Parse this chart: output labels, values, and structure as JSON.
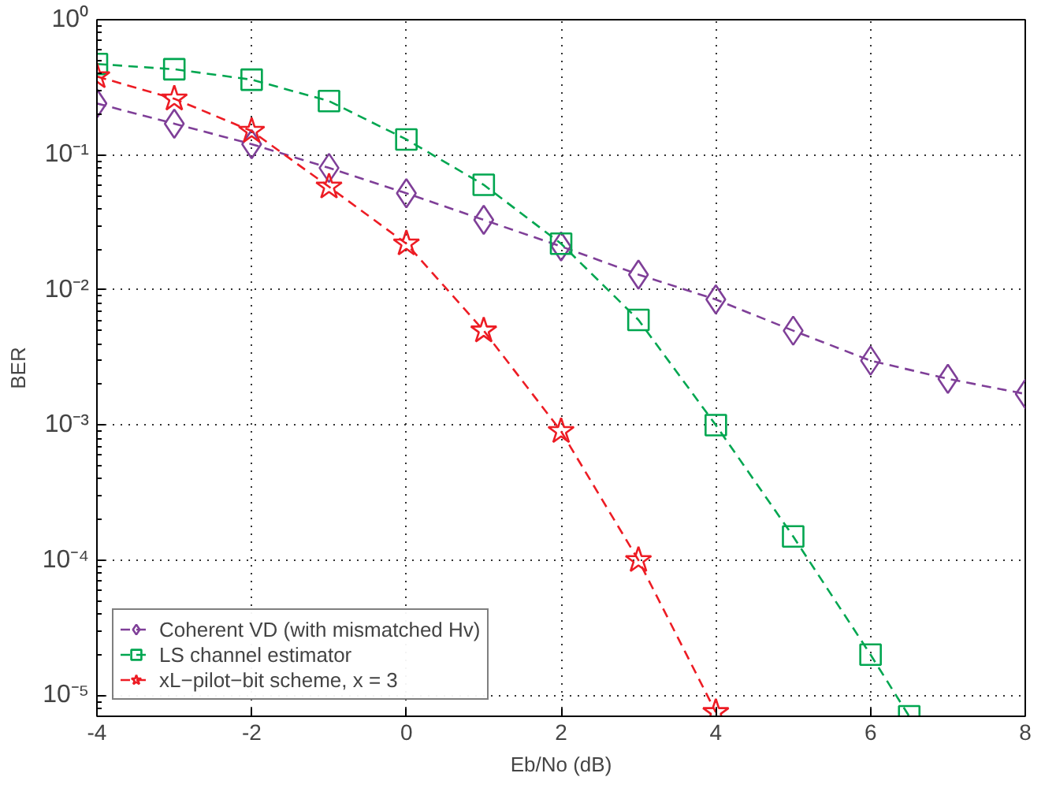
{
  "chart_data": {
    "type": "line",
    "xlabel": "Eb/No (dB)",
    "ylabel": "BER",
    "log": "y",
    "grid": true,
    "legend": "bottom left",
    "line_style": "dashed",
    "xlim": [
      -4,
      8
    ],
    "xticks": [
      -4,
      -2,
      0,
      2,
      4,
      6,
      8
    ],
    "ylim": [
      7e-06,
      1
    ],
    "yticks": [
      {
        "value": 1,
        "label": "10⁰"
      },
      {
        "value": 0.1,
        "label": "10⁻¹"
      },
      {
        "value": 0.01,
        "label": "10⁻²"
      },
      {
        "value": 0.001,
        "label": "10⁻³"
      },
      {
        "value": 0.0001,
        "label": "10⁻⁴"
      },
      {
        "value": 1e-05,
        "label": "10⁻⁵"
      }
    ],
    "series": [
      {
        "name": "Coherent VD (with mismatched Hv)",
        "color": "#7f3f98",
        "marker": "diamond",
        "x": [
          -4,
          -3,
          -2,
          -1,
          0,
          1,
          2,
          3,
          4,
          5,
          6,
          7,
          8
        ],
        "values": [
          0.24,
          0.17,
          0.12,
          0.08,
          0.052,
          0.033,
          0.021,
          0.013,
          0.0085,
          0.005,
          0.003,
          0.0022,
          0.0017
        ]
      },
      {
        "name": "LS channel estimator",
        "color": "#00a650",
        "marker": "square",
        "x": [
          -4,
          -3,
          -2,
          -1,
          0,
          1,
          2,
          3,
          4,
          5,
          6,
          6.5
        ],
        "values": [
          0.47,
          0.43,
          0.36,
          0.25,
          0.13,
          0.06,
          0.022,
          0.006,
          0.001,
          0.00015,
          2e-05,
          7e-06
        ]
      },
      {
        "name": "xL−pilot−bit scheme, x = 3",
        "color": "#ed1c24",
        "marker": "star",
        "x": [
          -4,
          -3,
          -2,
          -1,
          0,
          1,
          2,
          3,
          4
        ],
        "values": [
          0.38,
          0.26,
          0.15,
          0.058,
          0.022,
          0.005,
          0.0009,
          0.0001,
          7.5e-06
        ]
      }
    ]
  }
}
